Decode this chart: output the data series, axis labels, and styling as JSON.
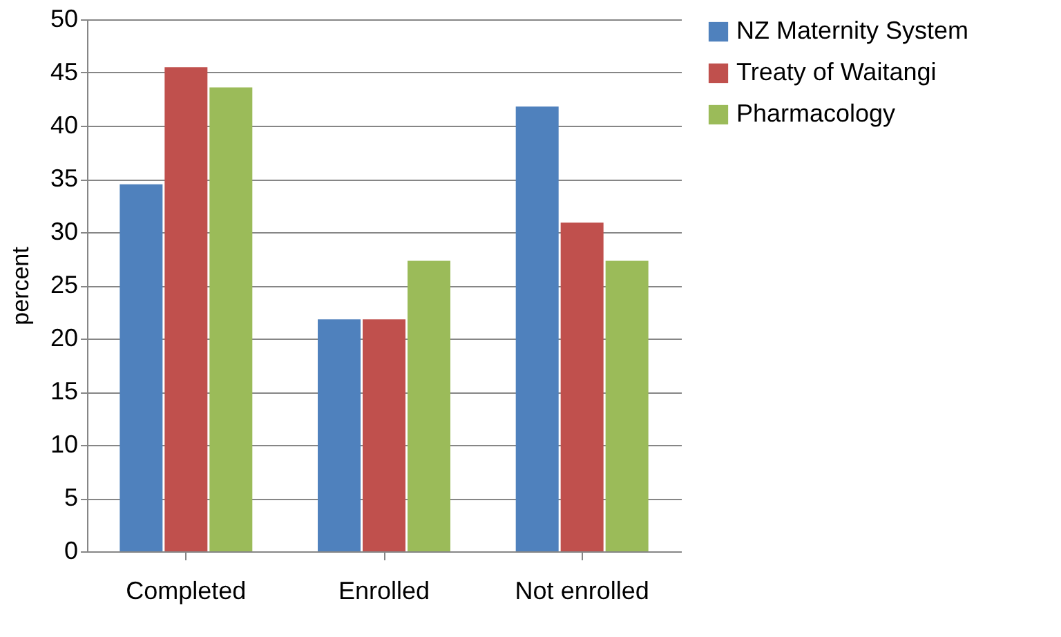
{
  "chart_data": {
    "type": "bar",
    "ylabel": "percent",
    "categories": [
      "Completed",
      "Enrolled",
      "Not enrolled"
    ],
    "series": [
      {
        "name": "NZ Maternity System",
        "color": "#4f81bd",
        "values": [
          34.5,
          21.8,
          41.8
        ]
      },
      {
        "name": "Treaty of Waitangi",
        "color": "#c0504d",
        "values": [
          45.5,
          21.8,
          30.9
        ]
      },
      {
        "name": "Pharmacology",
        "color": "#9bbb59",
        "values": [
          43.6,
          27.3,
          27.3
        ]
      }
    ],
    "ylim": [
      0,
      50
    ],
    "yticks": [
      0,
      5,
      10,
      15,
      20,
      25,
      30,
      35,
      40,
      45,
      50
    ],
    "grid": "y",
    "legend": "right"
  }
}
